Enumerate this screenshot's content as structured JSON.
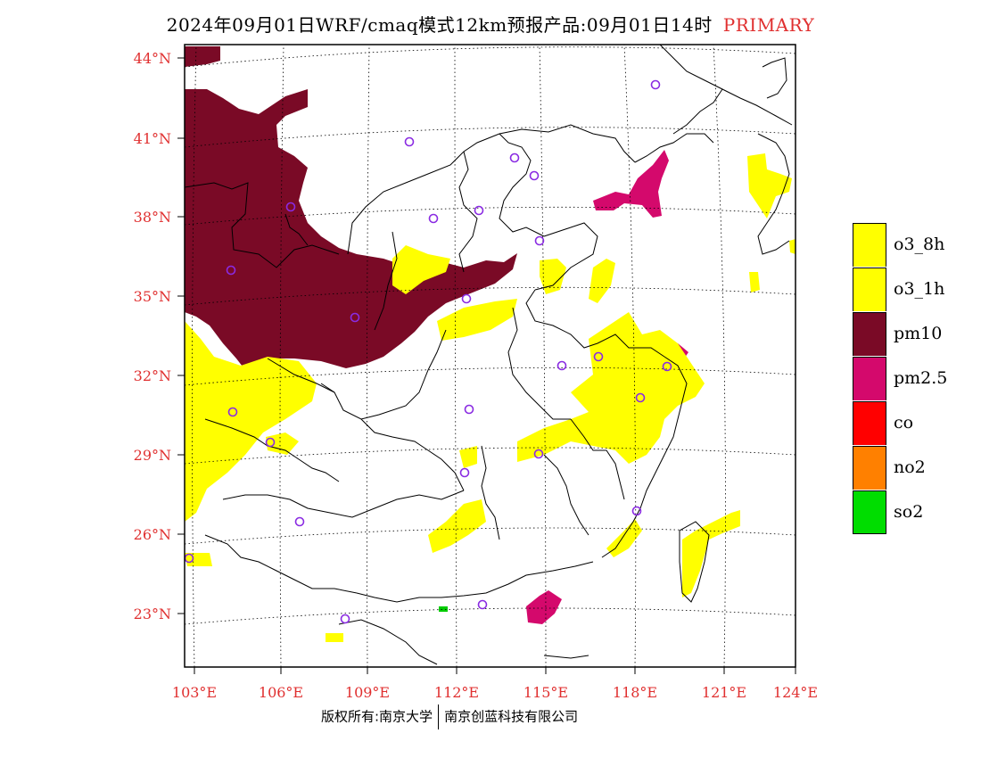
{
  "title": {
    "main": "2024年09月01日WRF/cmaq模式12km预报产品:09月01日14时",
    "tag": "PRIMARY"
  },
  "axes": {
    "lat_labels": [
      "44°N",
      "41°N",
      "38°N",
      "35°N",
      "32°N",
      "29°N",
      "26°N",
      "23°N"
    ],
    "lon_labels": [
      "103°E",
      "106°E",
      "109°E",
      "112°E",
      "115°E",
      "118°E",
      "121°E",
      "124°E"
    ],
    "label_color": "#e03030"
  },
  "legend": {
    "items": [
      {
        "label": "o3_8h",
        "color": "#ffff00"
      },
      {
        "label": "o3_1h",
        "color": "#ffff00"
      },
      {
        "label": "pm10",
        "color": "#7a0a26"
      },
      {
        "label": "pm2.5",
        "color": "#d4096c"
      },
      {
        "label": "co",
        "color": "#ff0000"
      },
      {
        "label": "no2",
        "color": "#ff8000"
      },
      {
        "label": "so2",
        "color": "#00dd00"
      }
    ]
  },
  "footer": {
    "left": "版权所有:南京大学",
    "right": "南京创蓝科技有限公司"
  },
  "colors": {
    "pm10": "#7a0a26",
    "pm25": "#d4096c",
    "o3": "#ffff00",
    "so2": "#00cc00",
    "station": "#8a2be2",
    "boundary": "#000000"
  }
}
